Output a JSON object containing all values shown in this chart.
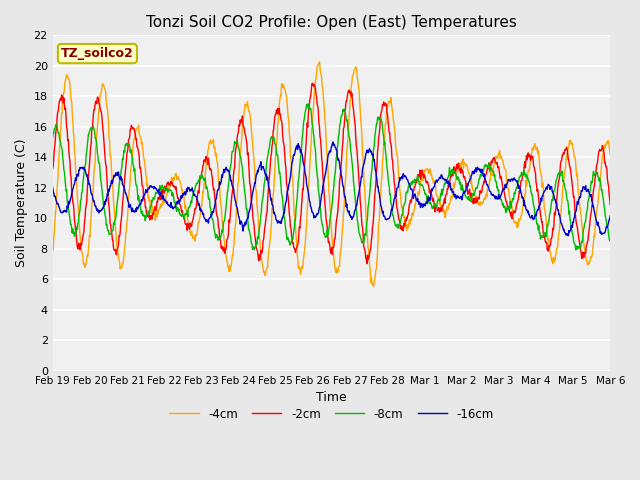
{
  "title": "Tonzi Soil CO2 Profile: Open (East) Temperatures",
  "xlabel": "Time",
  "ylabel": "Soil Temperature (C)",
  "ylim": [
    0,
    22
  ],
  "yticks": [
    0,
    2,
    4,
    6,
    8,
    10,
    12,
    14,
    16,
    18,
    20,
    22
  ],
  "legend_labels": [
    "-2cm",
    "-4cm",
    "-8cm",
    "-16cm"
  ],
  "legend_colors": [
    "#ff0000",
    "#ffa500",
    "#00bb00",
    "#0000cc"
  ],
  "box_label": "TZ_soilco2",
  "box_facecolor": "#ffffcc",
  "box_edgecolor": "#bbbb00",
  "box_textcolor": "#880000",
  "bg_color": "#e8e8e8",
  "plot_bg_color": "#f0f0f0",
  "xtick_labels": [
    "Feb 19",
    "Feb 20",
    "Feb 21",
    "Feb 22",
    "Feb 23",
    "Feb 24",
    "Feb 25",
    "Feb 26",
    "Feb 27",
    "Feb 28",
    "Mar 1",
    "Mar 2",
    "Mar 3",
    "Mar 4",
    "Mar 5",
    "Mar 6"
  ]
}
